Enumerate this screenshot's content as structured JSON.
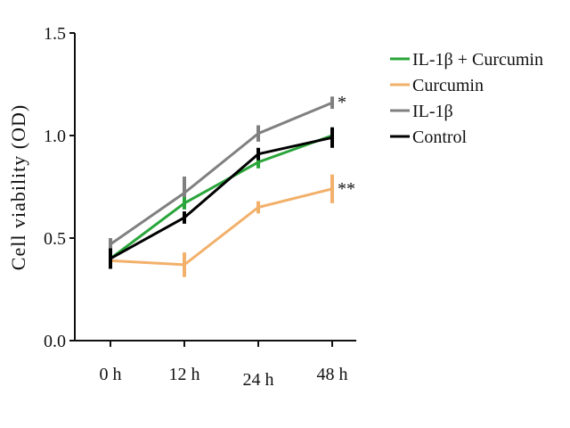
{
  "chart_data": {
    "type": "line",
    "title": "",
    "xlabel": "",
    "ylabel": "Cell viability (OD)",
    "categories": [
      "0 h",
      "12 h",
      "24 h",
      "48 h"
    ],
    "yticks": [
      "0.0",
      "0.5",
      "1.0",
      "1.5"
    ],
    "ylim": [
      0,
      1.5
    ],
    "grid": false,
    "legend_position": "top-right",
    "series": [
      {
        "name": "IL-1β + Curcumin",
        "color": "#2aa53a",
        "values": [
          0.4,
          0.67,
          0.87,
          1.0
        ],
        "errors": [
          0.03,
          0.03,
          0.03,
          0.04
        ]
      },
      {
        "name": "Curcumin",
        "color": "#f2b06a",
        "values": [
          0.39,
          0.37,
          0.65,
          0.74
        ],
        "errors": [
          0.03,
          0.06,
          0.03,
          0.07
        ]
      },
      {
        "name": "IL-1β",
        "color": "#808080",
        "values": [
          0.47,
          0.72,
          1.01,
          1.16
        ],
        "errors": [
          0.03,
          0.08,
          0.04,
          0.03
        ]
      },
      {
        "name": "Control",
        "color": "#000000",
        "values": [
          0.4,
          0.6,
          0.91,
          0.99
        ],
        "errors": [
          0.05,
          0.03,
          0.03,
          0.05
        ]
      }
    ],
    "annotations": [
      {
        "series": "IL-1β",
        "category": "48 h",
        "text": "*"
      },
      {
        "series": "Curcumin",
        "category": "48 h",
        "text": "**"
      }
    ]
  }
}
